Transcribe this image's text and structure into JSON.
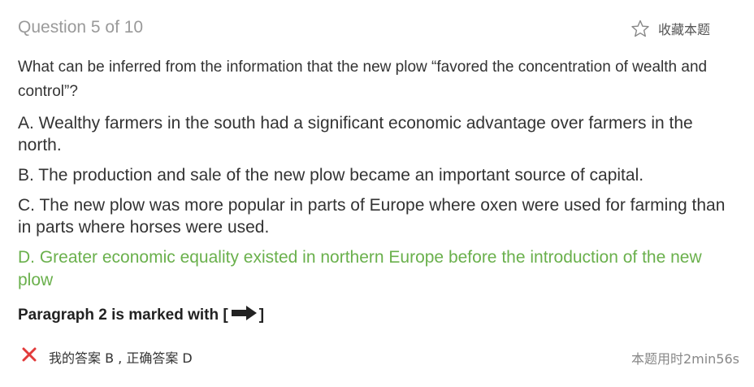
{
  "header": {
    "question_counter": "Question 5 of 10",
    "favorite_label": "收藏本题",
    "favorite_icon": "star-outline-icon"
  },
  "question": {
    "stem": "What can be inferred from the information that the new plow “favored the concentration of wealth and control”?"
  },
  "options": [
    {
      "text": "A. Wealthy farmers in the south had a significant economic advantage over farmers in the north.",
      "correct": false
    },
    {
      "text": "B. The production and sale of the new plow became an important source of capital.",
      "correct": false
    },
    {
      "text": "C. The new plow was more popular in parts of Europe where oxen were used for farming than in parts where horses were used.",
      "correct": false
    },
    {
      "text": "D. Greater economic equality existed in northern Europe before the introduction of the new plow",
      "correct": true
    }
  ],
  "paragraph_note": {
    "prefix": "Paragraph 2 is marked with [",
    "suffix": "]",
    "icon": "right-arrow-icon"
  },
  "result": {
    "status_icon": "red-x-icon",
    "text": "我的答案 B , 正确答案 D",
    "time": "本题用时2min56s"
  },
  "colors": {
    "correct": "#6ab04c",
    "wrong": "#e23b3b",
    "muted": "#9a9a9a"
  }
}
